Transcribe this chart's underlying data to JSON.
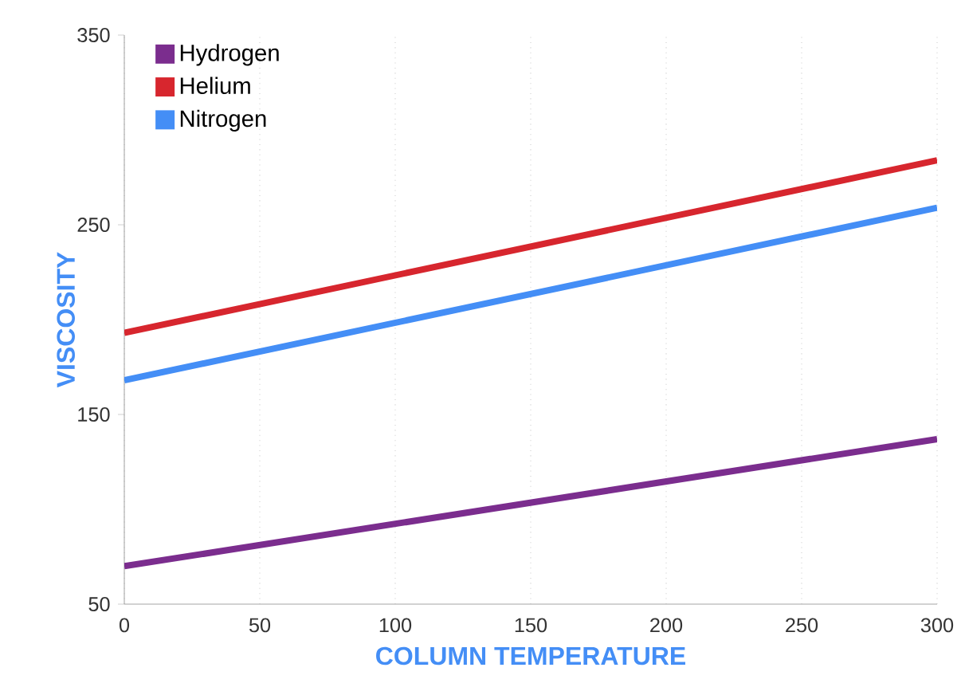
{
  "chart_data": {
    "type": "line",
    "xlabel": "COLUMN TEMPERATURE",
    "ylabel": "VISCOSITY",
    "x": [
      0,
      300
    ],
    "series": [
      {
        "name": "Hydrogen",
        "color": "#7b2d8e",
        "values": [
          70,
          137
        ]
      },
      {
        "name": "Helium",
        "color": "#d7262e",
        "values": [
          193,
          284
        ]
      },
      {
        "name": "Nitrogen",
        "color": "#448ef6",
        "values": [
          168,
          259
        ]
      }
    ],
    "xlim": [
      0,
      300
    ],
    "ylim": [
      50,
      350
    ],
    "xticks": [
      0,
      50,
      100,
      150,
      200,
      250,
      300
    ],
    "yticks": [
      50,
      150,
      250,
      350
    ],
    "grid": "x",
    "legend": "top left",
    "line_style": "solid"
  }
}
